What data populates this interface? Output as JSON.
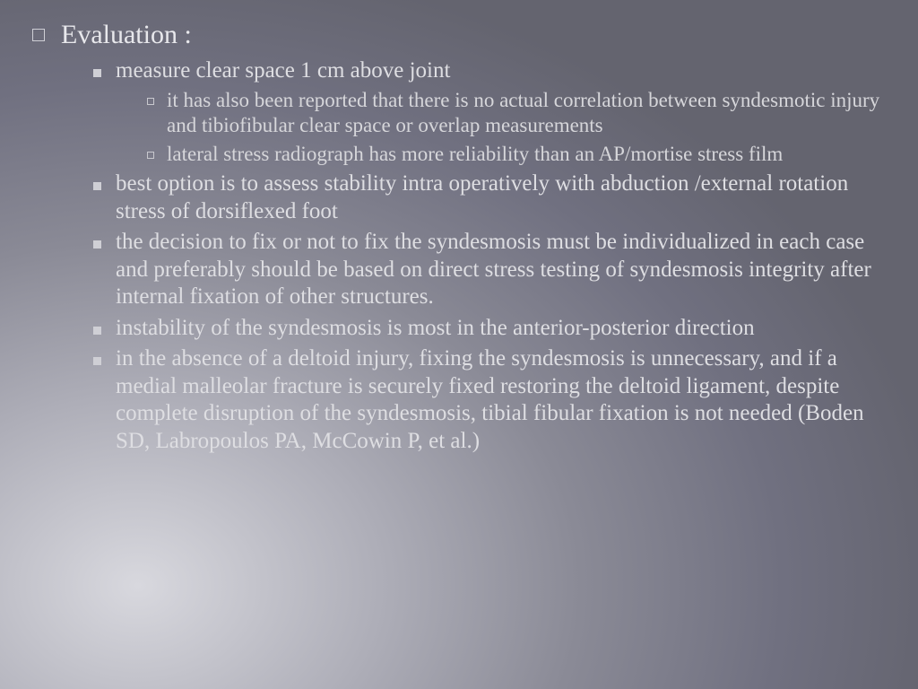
{
  "slide": {
    "heading": "Evaluation :",
    "items": [
      {
        "text": "measure clear space 1 cm above joint",
        "sub": [
          "it has also been reported that there is no actual correlation between syndesmotic injury and tibiofibular clear space or overlap measurements",
          "lateral stress radiograph has more reliability than an AP/mortise stress film"
        ]
      },
      {
        "text": "best option is to assess stability intra operatively with abduction /external rotation stress of dorsiflexed foot"
      },
      {
        "text": "the decision to fix or not to fix the syndesmosis must be individualized in each case and preferably should be based on direct stress testing of syndesmosis integrity after internal fixation of other structures."
      },
      {
        "text": "instability of the syndesmosis is most in the anterior-posterior direction"
      },
      {
        "text": "in the absence of a deltoid injury, fixing the syndesmosis is unnecessary, and if a medial malleolar fracture is securely fixed restoring the deltoid ligament, despite complete disruption of the syndesmosis, tibial fibular fixation is not needed (Boden SD, Labropoulos PA, McCowin P, et al.)"
      }
    ]
  },
  "style": {
    "background_gradient": [
      "#d8d8de",
      "#aeaeb8",
      "#8a8a96",
      "#707080",
      "#64646f"
    ],
    "text_color_l1": "#e8e8ec",
    "text_color_l2": "#dedee2",
    "text_color_l3": "#d6d6da",
    "bullet_color": "#cfcfd5",
    "font_family": "Georgia, serif",
    "fontsize_l1": 30,
    "fontsize_l2": 25,
    "fontsize_l3": 23
  }
}
